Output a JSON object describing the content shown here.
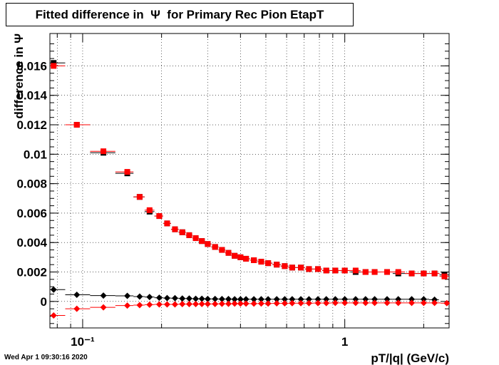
{
  "title": "Fitted difference in  Ψ  for Primary Rec Pion EtapT",
  "timestamp": "Wed Apr  1 09:30:16 2020",
  "chart_data": {
    "type": "scatter",
    "title": "Fitted difference in  Ψ  for Primary Rec Pion EtapT",
    "xlabel": "pT/|q| (GeV/c)",
    "ylabel": "difference in  Ψ",
    "xscale": "log",
    "xlim": [
      0.075,
      2.5
    ],
    "ylim": [
      -0.0018,
      0.0182
    ],
    "grid": true,
    "x_tick_labels": [
      "10⁻¹",
      "1"
    ],
    "y_tick_labels": [
      "0",
      "0.002",
      "0.004",
      "0.006",
      "0.008",
      "0.01",
      "0.012",
      "0.014",
      "0.016"
    ],
    "series": [
      {
        "marker": "square",
        "color": "#000000",
        "x": [
          0.0775,
          0.095,
          0.12,
          0.148,
          0.165,
          0.18,
          0.196,
          0.21,
          0.225,
          0.24,
          0.255,
          0.27,
          0.285,
          0.3,
          0.32,
          0.34,
          0.36,
          0.38,
          0.4,
          0.42,
          0.45,
          0.48,
          0.51,
          0.55,
          0.59,
          0.63,
          0.68,
          0.73,
          0.79,
          0.85,
          0.92,
          1.0,
          1.1,
          1.2,
          1.3,
          1.45,
          1.6,
          1.8,
          2.0,
          2.2,
          2.4
        ],
        "y": [
          0.0162,
          0.012,
          0.0101,
          0.0087,
          0.0071,
          0.0061,
          0.0058,
          0.0053,
          0.0049,
          0.0047,
          0.0045,
          0.0043,
          0.0041,
          0.0039,
          0.0037,
          0.0035,
          0.0033,
          0.0031,
          0.003,
          0.0029,
          0.0028,
          0.0027,
          0.0026,
          0.0025,
          0.0024,
          0.0023,
          0.0023,
          0.0022,
          0.0022,
          0.0021,
          0.0021,
          0.0021,
          0.002,
          0.002,
          0.002,
          0.002,
          0.0019,
          0.0019,
          0.0019,
          0.0019,
          0.0018
        ]
      },
      {
        "marker": "square",
        "color": "#ff0000",
        "x": [
          0.0775,
          0.095,
          0.12,
          0.148,
          0.165,
          0.18,
          0.196,
          0.21,
          0.225,
          0.24,
          0.255,
          0.27,
          0.285,
          0.3,
          0.32,
          0.34,
          0.36,
          0.38,
          0.4,
          0.42,
          0.45,
          0.48,
          0.51,
          0.55,
          0.59,
          0.63,
          0.68,
          0.73,
          0.79,
          0.85,
          0.92,
          1.0,
          1.1,
          1.2,
          1.3,
          1.45,
          1.6,
          1.8,
          2.0,
          2.2,
          2.4
        ],
        "y": [
          0.016,
          0.012,
          0.0102,
          0.0088,
          0.0071,
          0.0062,
          0.0058,
          0.0053,
          0.0049,
          0.0047,
          0.0045,
          0.0043,
          0.0041,
          0.0039,
          0.0037,
          0.0035,
          0.0033,
          0.0031,
          0.003,
          0.0029,
          0.0028,
          0.0027,
          0.0026,
          0.0025,
          0.0024,
          0.0023,
          0.0023,
          0.0022,
          0.0022,
          0.0021,
          0.0021,
          0.0021,
          0.0021,
          0.002,
          0.002,
          0.002,
          0.002,
          0.0019,
          0.0019,
          0.0019,
          0.0017
        ]
      },
      {
        "marker": "diamond",
        "color": "#000000",
        "x": [
          0.0775,
          0.095,
          0.12,
          0.148,
          0.165,
          0.18,
          0.196,
          0.21,
          0.225,
          0.24,
          0.255,
          0.27,
          0.285,
          0.3,
          0.32,
          0.34,
          0.36,
          0.38,
          0.4,
          0.42,
          0.45,
          0.48,
          0.51,
          0.55,
          0.59,
          0.63,
          0.68,
          0.73,
          0.79,
          0.85,
          0.92,
          1.0,
          1.1,
          1.2,
          1.3,
          1.45,
          1.6,
          1.8,
          2.0,
          2.2
        ],
        "y": [
          0.0008,
          0.00045,
          0.0004,
          0.00038,
          0.00033,
          0.0003,
          0.00025,
          0.00023,
          0.00022,
          0.0002,
          0.0002,
          0.00018,
          0.00018,
          0.00017,
          0.00017,
          0.00016,
          0.00016,
          0.00015,
          0.00015,
          0.00015,
          0.00015,
          0.00015,
          0.00015,
          0.00015,
          0.00015,
          0.00015,
          0.00015,
          0.00015,
          0.00015,
          0.00015,
          0.00015,
          0.00015,
          0.00015,
          0.00015,
          0.00015,
          0.00015,
          0.00015,
          0.00015,
          0.00015,
          0.00012
        ]
      },
      {
        "marker": "diamond",
        "color": "#ff0000",
        "x": [
          0.0775,
          0.095,
          0.12,
          0.148,
          0.165,
          0.18,
          0.196,
          0.21,
          0.225,
          0.24,
          0.255,
          0.27,
          0.285,
          0.3,
          0.32,
          0.34,
          0.36,
          0.38,
          0.4,
          0.42,
          0.45,
          0.48,
          0.51,
          0.55,
          0.59,
          0.63,
          0.68,
          0.73,
          0.79,
          0.85,
          0.92,
          1.0,
          1.1,
          1.2,
          1.3,
          1.45,
          1.6,
          1.8,
          2.0,
          2.2,
          2.45
        ],
        "y": [
          -0.00095,
          -0.0005,
          -0.0004,
          -0.00028,
          -0.00025,
          -0.00022,
          -0.0002,
          -0.0002,
          -0.0002,
          -0.00018,
          -0.00018,
          -0.00018,
          -0.00017,
          -0.00017,
          -0.00017,
          -0.00016,
          -0.00016,
          -0.00015,
          -0.00015,
          -0.00015,
          -0.00015,
          -0.00014,
          -0.00014,
          -0.00013,
          -0.00013,
          -0.00012,
          -0.00012,
          -0.00012,
          -0.00011,
          -0.00011,
          -0.0001,
          -0.0001,
          -0.0001,
          -0.0001,
          -0.0001,
          -0.0001,
          -0.0001,
          -0.0001,
          -0.0001,
          -0.0001,
          -0.00012
        ]
      }
    ]
  }
}
